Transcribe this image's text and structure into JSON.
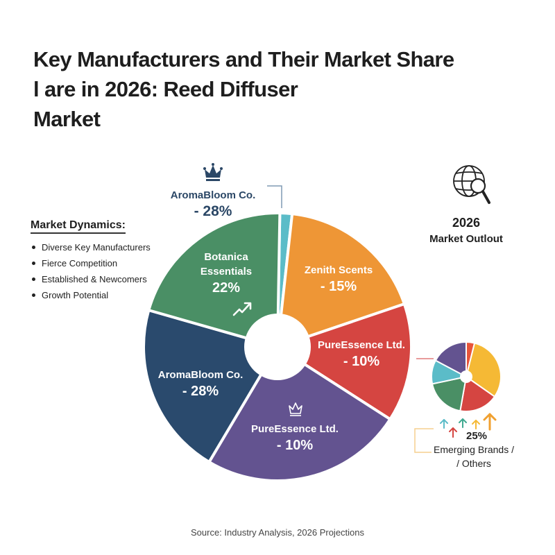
{
  "title": {
    "line1": "Key Manufacturers and Their Market Share",
    "line2": "l are in 2026: Reed Diffuser",
    "line3": "Market"
  },
  "market_dynamics": {
    "heading": "Market Dynamics:",
    "items": [
      "Diverse Key Manufacturers",
      "Fierce Competition",
      "Established & Newcomers",
      "Growth Potential"
    ]
  },
  "callout_top": {
    "name": "AromaBloom Co.",
    "pct": "- 28%",
    "icon": "crown-icon"
  },
  "outlook": {
    "icon": "globe-search-icon",
    "year": "2026",
    "label": "Market Outlout"
  },
  "emerging": {
    "pct": "25%",
    "line1": "Emerging Brands /",
    "line2": "/ Others"
  },
  "source": "Source: Industry Analysis, 2026 Projections",
  "colors": {
    "cyan": "#5bbcc8",
    "orange": "#ee9636",
    "red": "#d54541",
    "purple": "#635390",
    "navy": "#2a4a6d",
    "green": "#4a8f65",
    "yellow": "#f5b935",
    "redorange": "#e8553a"
  },
  "chart_data": [
    {
      "type": "pie",
      "title": "Key Manufacturers and Their Market Share in 2026: Reed Diffuser Market",
      "donut": true,
      "slices": [
        {
          "label": "(unlabeled)",
          "value_label": "",
          "color": "#5bbcc8",
          "start_deg": 1,
          "end_deg": 6.3
        },
        {
          "label": "Zenith Scents",
          "value_label": "- 15%",
          "value": 15,
          "color": "#ee9636",
          "start_deg": 6.3,
          "end_deg": 71.3
        },
        {
          "label": "PureEssence Ltd.",
          "value_label": "- 10%",
          "value": 10,
          "color": "#d54541",
          "start_deg": 71.3,
          "end_deg": 122.7
        },
        {
          "label": "PureEssence Ltd.",
          "value_label": "- 10%",
          "value": 10,
          "color": "#635390",
          "start_deg": 122.7,
          "end_deg": 210.7
        },
        {
          "label": "AromaBloom Co.",
          "value_label": "- 28%",
          "value": 28,
          "color": "#2a4a6d",
          "start_deg": 210.7,
          "end_deg": 285.9
        },
        {
          "label": "Botanica Essentials",
          "value_label": "22%",
          "value": 22,
          "color": "#4a8f65",
          "start_deg": 285.9,
          "end_deg": 361
        }
      ],
      "annotations": [
        "AromaBloom Co. - 28% (callout, crown)",
        "2026 Market Outlout"
      ]
    },
    {
      "type": "pie",
      "title": "Emerging Brands / / Others",
      "value_label": "25%",
      "value": 25,
      "donut": true,
      "slices": [
        {
          "color": "#e8553a",
          "start_deg": 0,
          "end_deg": 14
        },
        {
          "color": "#f5b935",
          "start_deg": 14,
          "end_deg": 125
        },
        {
          "color": "#d54541",
          "start_deg": 125,
          "end_deg": 190
        },
        {
          "color": "#4a8f65",
          "start_deg": 190,
          "end_deg": 258
        },
        {
          "color": "#5bbcc8",
          "start_deg": 258,
          "end_deg": 298
        },
        {
          "color": "#635390",
          "start_deg": 298,
          "end_deg": 360
        }
      ]
    }
  ],
  "labels": {
    "green": {
      "name1": "Botanica",
      "name2": "Essentials",
      "pct": "22%"
    },
    "orange": {
      "name": "Zenith Scents",
      "pct": "- 15%"
    },
    "red": {
      "name": "PureEssence Ltd.",
      "pct": "- 10%"
    },
    "purple": {
      "name": "PureEssence Ltd.",
      "pct": "- 10%"
    },
    "navy": {
      "name": "AromaBloom Co.",
      "pct": "- 28%"
    }
  }
}
